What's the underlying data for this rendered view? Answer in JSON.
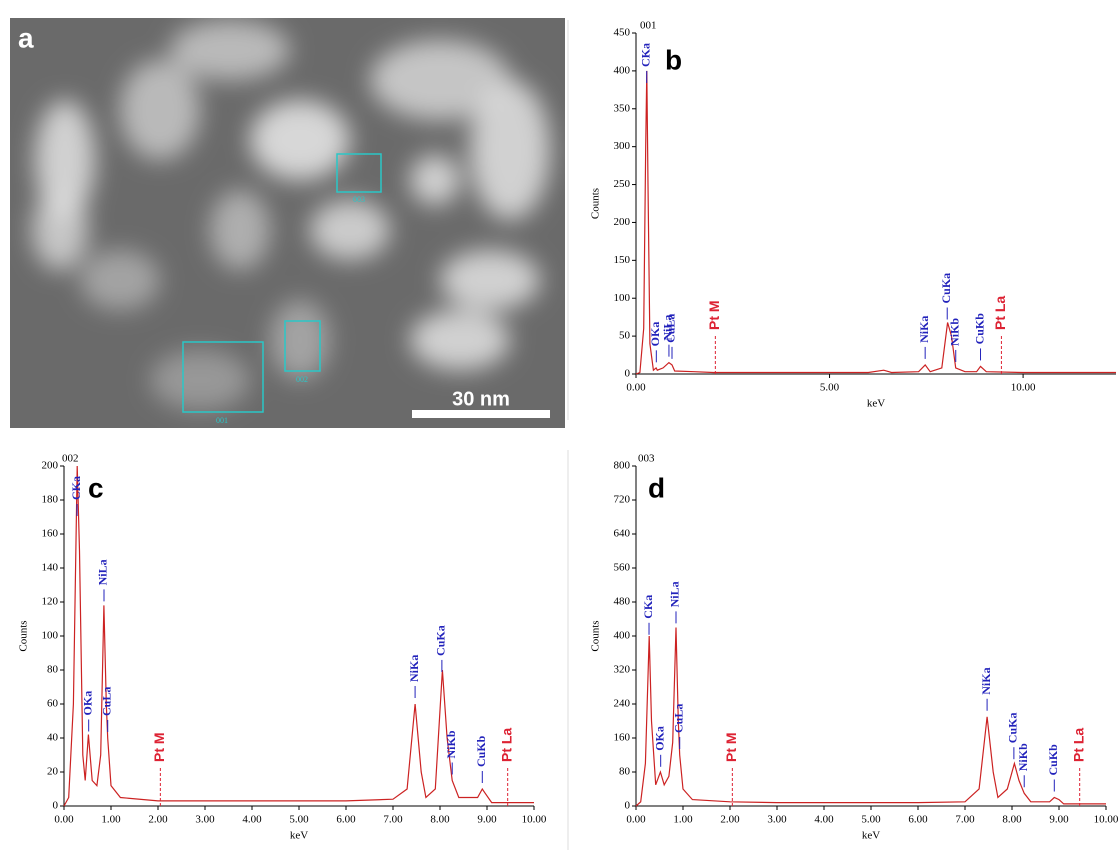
{
  "image": {
    "label": "a",
    "scale_bar": "30 nm",
    "regions": [
      "001",
      "002",
      "003"
    ]
  },
  "chart_data": [
    {
      "type": "line",
      "panel": "b",
      "title": "001",
      "ylabel": "Counts",
      "xlabel": "keV",
      "color": "#cc2222",
      "x": [
        0,
        0.1,
        0.2,
        0.25,
        0.28,
        0.31,
        0.36,
        0.45,
        0.52,
        0.55,
        0.7,
        0.85,
        0.93,
        1.0,
        1.5,
        2,
        3,
        4,
        5,
        6,
        6.4,
        6.6,
        7.3,
        7.47,
        7.6,
        7.9,
        8.05,
        8.15,
        8.26,
        8.5,
        8.8,
        8.9,
        9.05,
        10,
        11,
        12.4
      ],
      "values": [
        0,
        2,
        60,
        300,
        400,
        250,
        40,
        5,
        8,
        5,
        8,
        15,
        12,
        4,
        3,
        2,
        2,
        2,
        2,
        2,
        5,
        2,
        3,
        12,
        3,
        8,
        68,
        50,
        8,
        3,
        3,
        10,
        3,
        2,
        2,
        2
      ],
      "xlim": [
        0,
        12.4
      ],
      "ylim": [
        0,
        450
      ],
      "xticks": [
        {
          "value": 0,
          "label": "0.00"
        },
        {
          "value": 5,
          "label": "5.00"
        },
        {
          "value": 10,
          "label": "10.00"
        }
      ],
      "yticks": [
        0,
        50,
        100,
        150,
        200,
        250,
        300,
        350,
        400,
        450
      ],
      "annotations": [
        {
          "label": "CKa",
          "x": 0.277,
          "color": "#2222bb"
        },
        {
          "label": "OKa",
          "x": 0.525,
          "color": "#2222bb"
        },
        {
          "label": "NiLa",
          "x": 0.851,
          "color": "#2222bb"
        },
        {
          "label": "CuLa",
          "x": 0.93,
          "color": "#2222bb"
        },
        {
          "label": "Pt M",
          "x": 2.05,
          "color": "#dd2233"
        },
        {
          "label": "NiKa",
          "x": 7.47,
          "color": "#2222bb"
        },
        {
          "label": "CuKa",
          "x": 8.04,
          "color": "#2222bb"
        },
        {
          "label": "NiKb",
          "x": 8.26,
          "color": "#2222bb"
        },
        {
          "label": "CuKb",
          "x": 8.9,
          "color": "#2222bb"
        },
        {
          "label": "Pt La",
          "x": 9.44,
          "color": "#dd2233"
        }
      ]
    },
    {
      "type": "line",
      "panel": "c",
      "title": "002",
      "ylabel": "Counts",
      "xlabel": "keV",
      "color": "#cc2222",
      "x": [
        0,
        0.1,
        0.2,
        0.28,
        0.33,
        0.4,
        0.45,
        0.52,
        0.6,
        0.7,
        0.78,
        0.85,
        0.9,
        0.93,
        1.0,
        1.2,
        2,
        3,
        4,
        5,
        6,
        7,
        7.3,
        7.47,
        7.6,
        7.7,
        7.9,
        8.05,
        8.15,
        8.26,
        8.4,
        8.8,
        8.9,
        8.95,
        9.1,
        10
      ],
      "values": [
        0,
        5,
        60,
        200,
        150,
        30,
        15,
        42,
        15,
        12,
        30,
        118,
        60,
        40,
        12,
        5,
        3,
        3,
        3,
        3,
        3,
        4,
        10,
        60,
        20,
        5,
        10,
        80,
        40,
        15,
        5,
        5,
        10,
        8,
        2,
        2
      ],
      "xlim": [
        0,
        10
      ],
      "ylim": [
        0,
        200
      ],
      "xticks": [
        {
          "value": 0,
          "label": "0.00"
        },
        {
          "value": 1,
          "label": "1.00"
        },
        {
          "value": 2,
          "label": "2.00"
        },
        {
          "value": 3,
          "label": "3.00"
        },
        {
          "value": 4,
          "label": "4.00"
        },
        {
          "value": 5,
          "label": "5.00"
        },
        {
          "value": 6,
          "label": "6.00"
        },
        {
          "value": 7,
          "label": "7.00"
        },
        {
          "value": 8,
          "label": "8.00"
        },
        {
          "value": 9,
          "label": "9.00"
        },
        {
          "value": 10,
          "label": "10.00"
        }
      ],
      "yticks": [
        0,
        20,
        40,
        60,
        80,
        100,
        120,
        140,
        160,
        180,
        200
      ],
      "annotations": [
        {
          "label": "CKa",
          "x": 0.277,
          "color": "#2222bb"
        },
        {
          "label": "OKa",
          "x": 0.525,
          "color": "#2222bb"
        },
        {
          "label": "NiLa",
          "x": 0.851,
          "color": "#2222bb"
        },
        {
          "label": "CuLa",
          "x": 0.93,
          "color": "#2222bb"
        },
        {
          "label": "Pt M",
          "x": 2.05,
          "color": "#dd2233"
        },
        {
          "label": "NiKa",
          "x": 7.47,
          "color": "#2222bb"
        },
        {
          "label": "CuKa",
          "x": 8.04,
          "color": "#2222bb"
        },
        {
          "label": "NiKb",
          "x": 8.26,
          "color": "#2222bb"
        },
        {
          "label": "CuKb",
          "x": 8.9,
          "color": "#2222bb"
        },
        {
          "label": "Pt La",
          "x": 9.44,
          "color": "#dd2233"
        }
      ]
    },
    {
      "type": "line",
      "panel": "d",
      "title": "003",
      "ylabel": "Counts",
      "xlabel": "keV",
      "color": "#cc2222",
      "x": [
        0,
        0.1,
        0.2,
        0.28,
        0.33,
        0.42,
        0.52,
        0.6,
        0.7,
        0.78,
        0.85,
        0.9,
        0.93,
        1.0,
        1.2,
        2,
        3,
        4,
        5,
        6,
        7,
        7.3,
        7.47,
        7.6,
        7.7,
        7.9,
        8.05,
        8.15,
        8.26,
        8.4,
        8.8,
        8.9,
        9.0,
        9.1,
        10
      ],
      "values": [
        0,
        10,
        100,
        400,
        200,
        50,
        80,
        50,
        70,
        150,
        420,
        200,
        120,
        40,
        15,
        10,
        8,
        8,
        8,
        8,
        10,
        40,
        210,
        80,
        20,
        40,
        100,
        60,
        30,
        10,
        10,
        20,
        15,
        5,
        5
      ],
      "xlim": [
        0,
        10
      ],
      "ylim": [
        0,
        800
      ],
      "xticks": [
        {
          "value": 0,
          "label": "0.00"
        },
        {
          "value": 1,
          "label": "1.00"
        },
        {
          "value": 2,
          "label": "2.00"
        },
        {
          "value": 3,
          "label": "3.00"
        },
        {
          "value": 4,
          "label": "4.00"
        },
        {
          "value": 5,
          "label": "5.00"
        },
        {
          "value": 6,
          "label": "6.00"
        },
        {
          "value": 7,
          "label": "7.00"
        },
        {
          "value": 8,
          "label": "8.00"
        },
        {
          "value": 9,
          "label": "9.00"
        },
        {
          "value": 10,
          "label": "10.00"
        }
      ],
      "yticks": [
        0,
        80,
        160,
        240,
        320,
        400,
        480,
        560,
        640,
        720,
        800
      ],
      "annotations": [
        {
          "label": "CKa",
          "x": 0.277,
          "color": "#2222bb"
        },
        {
          "label": "OKa",
          "x": 0.525,
          "color": "#2222bb"
        },
        {
          "label": "NiLa",
          "x": 0.851,
          "color": "#2222bb"
        },
        {
          "label": "CuLa",
          "x": 0.93,
          "color": "#2222bb"
        },
        {
          "label": "Pt M",
          "x": 2.05,
          "color": "#dd2233"
        },
        {
          "label": "NiKa",
          "x": 7.47,
          "color": "#2222bb"
        },
        {
          "label": "CuKa",
          "x": 8.04,
          "color": "#2222bb"
        },
        {
          "label": "NiKb",
          "x": 8.26,
          "color": "#2222bb"
        },
        {
          "label": "CuKb",
          "x": 8.9,
          "color": "#2222bb"
        },
        {
          "label": "Pt La",
          "x": 9.44,
          "color": "#dd2233"
        }
      ]
    }
  ]
}
